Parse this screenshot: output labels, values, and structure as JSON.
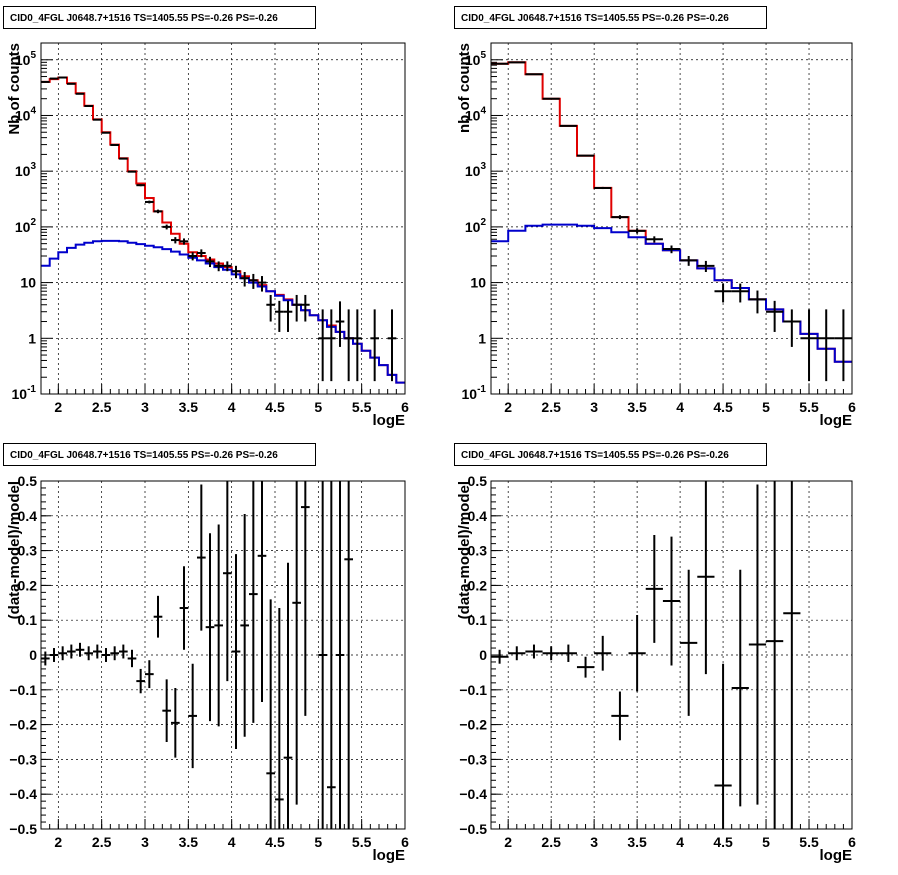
{
  "chart_data": [
    {
      "type": "line",
      "title": "CID0_4FGL J0648.7+1516 TS=1405.55 PS=-0.26 PS=-0.26",
      "xlabel": "logE",
      "ylabel": "Nb of counts",
      "xlim": [
        1.8,
        6.0
      ],
      "ylim": [
        0.1,
        200000
      ],
      "yscale": "log",
      "grid": true,
      "x_ticks": [
        "2",
        "2.5",
        "3",
        "3.5",
        "4",
        "4.5",
        "5",
        "5.5",
        "6"
      ],
      "y_ticks": [
        {
          "base": "10",
          "exp": "-1",
          "value": 0.1
        },
        {
          "base": "1",
          "exp": "",
          "value": 1
        },
        {
          "base": "10",
          "exp": "",
          "value": 10
        },
        {
          "base": "10",
          "exp": "2",
          "value": 100
        },
        {
          "base": "10",
          "exp": "3",
          "value": 1000
        },
        {
          "base": "10",
          "exp": "4",
          "value": 10000
        },
        {
          "base": "10",
          "exp": "5",
          "value": 100000
        }
      ],
      "series": [
        {
          "color": "#e00000",
          "style": "step",
          "bin_width": 0.1,
          "x": [
            1.8,
            1.9,
            2.0,
            2.1,
            2.2,
            2.3,
            2.4,
            2.5,
            2.6,
            2.7,
            2.8,
            2.9,
            3.0,
            3.1,
            3.2,
            3.3,
            3.4,
            3.5,
            3.6,
            3.7,
            3.8,
            3.9,
            4.0,
            4.1,
            4.2,
            4.3,
            4.4,
            4.5,
            4.6,
            4.7,
            4.8,
            4.9,
            5.0,
            5.1,
            5.2,
            5.3,
            5.4,
            5.5,
            5.6,
            5.7,
            5.8,
            5.9
          ],
          "y": [
            40000,
            45000,
            48000,
            38000,
            25000,
            15000,
            8500,
            5000,
            3000,
            1700,
            1000,
            600,
            330,
            190,
            120,
            75,
            50,
            35,
            30,
            26,
            22,
            19,
            16,
            13,
            11,
            9,
            7,
            6,
            5,
            4,
            3.2,
            2.6,
            2.1,
            1.7,
            1.3,
            1.0,
            0.8,
            0.6,
            0.45,
            0.33,
            0.22,
            0.16
          ]
        },
        {
          "color": "#0000cc",
          "style": "step",
          "bin_width": 0.1,
          "x": [
            1.8,
            1.9,
            2.0,
            2.1,
            2.2,
            2.3,
            2.4,
            2.5,
            2.6,
            2.7,
            2.8,
            2.9,
            3.0,
            3.1,
            3.2,
            3.3,
            3.4,
            3.5,
            3.6,
            3.7,
            3.8,
            3.9,
            4.0,
            4.1,
            4.2,
            4.3,
            4.4,
            4.5,
            4.6,
            4.7,
            4.8,
            4.9,
            5.0,
            5.1,
            5.2,
            5.3,
            5.4,
            5.5,
            5.6,
            5.7,
            5.8,
            5.9
          ],
          "y": [
            20,
            27,
            35,
            42,
            48,
            52,
            55,
            56,
            56,
            55,
            52,
            49,
            46,
            43,
            40,
            36,
            32,
            28,
            25,
            22,
            19,
            17,
            14,
            12,
            10,
            8.5,
            7,
            5.8,
            4.8,
            4,
            3.2,
            2.6,
            2.1,
            1.6,
            1.3,
            1.0,
            0.8,
            0.6,
            0.45,
            0.33,
            0.22,
            0.16
          ]
        }
      ],
      "points": {
        "x": [
          1.85,
          1.95,
          2.05,
          2.15,
          2.25,
          2.35,
          2.45,
          2.55,
          2.65,
          2.75,
          2.85,
          2.95,
          3.05,
          3.15,
          3.25,
          3.35,
          3.45,
          3.55,
          3.65,
          3.75,
          3.85,
          3.95,
          4.05,
          4.15,
          4.25,
          4.35,
          4.45,
          4.55,
          4.65,
          4.75,
          4.85,
          5.05,
          5.15,
          5.25,
          5.35,
          5.45,
          5.65,
          5.85
        ],
        "y": [
          40000,
          46000,
          48000,
          37000,
          24500,
          14800,
          8400,
          4900,
          2950,
          1680,
          980,
          560,
          280,
          190,
          100,
          58,
          55,
          30,
          34,
          24,
          20,
          20,
          16,
          12,
          11,
          10,
          4,
          3,
          3,
          4,
          4,
          1,
          1,
          2,
          1,
          1,
          1,
          1
        ],
        "yerr_lo": [
          200,
          220,
          220,
          190,
          160,
          120,
          90,
          70,
          55,
          40,
          31,
          23,
          16,
          14,
          10,
          7.5,
          7,
          5,
          5.5,
          5,
          4,
          4,
          4,
          3.5,
          3.3,
          3.1,
          2,
          1.7,
          1.7,
          2,
          2,
          0.83,
          0.83,
          1.3,
          0.83,
          0.83,
          0.83,
          0.83
        ],
        "yerr_hi": [
          200,
          220,
          220,
          190,
          160,
          120,
          90,
          70,
          55,
          40,
          31,
          23,
          16,
          14,
          10,
          7.5,
          7,
          5,
          5.5,
          5,
          4,
          4,
          4,
          3.5,
          3.3,
          3.1,
          2,
          1.7,
          1.7,
          2,
          2,
          2.3,
          2.3,
          2.6,
          2.3,
          2.3,
          2.3,
          2.3
        ],
        "xerr": 0.05
      }
    },
    {
      "type": "line",
      "title": "CID0_4FGL J0648.7+1516 TS=1405.55 PS=-0.26 PS=-0.26",
      "xlabel": "logE",
      "ylabel": "nb of counts",
      "xlim": [
        1.8,
        6.0
      ],
      "ylim": [
        0.1,
        200000
      ],
      "yscale": "log",
      "grid": true,
      "x_ticks": [
        "2",
        "2.5",
        "3",
        "3.5",
        "4",
        "4.5",
        "5",
        "5.5",
        "6"
      ],
      "y_ticks": [
        {
          "base": "10",
          "exp": "-1",
          "value": 0.1
        },
        {
          "base": "1",
          "exp": "",
          "value": 1
        },
        {
          "base": "10",
          "exp": "",
          "value": 10
        },
        {
          "base": "10",
          "exp": "2",
          "value": 100
        },
        {
          "base": "10",
          "exp": "3",
          "value": 1000
        },
        {
          "base": "10",
          "exp": "4",
          "value": 10000
        },
        {
          "base": "10",
          "exp": "5",
          "value": 100000
        }
      ],
      "series": [
        {
          "color": "#e00000",
          "style": "step",
          "bin_width": 0.2,
          "x": [
            1.8,
            2.0,
            2.2,
            2.4,
            2.6,
            2.8,
            3.0,
            3.2,
            3.4,
            3.6,
            3.8,
            4.0,
            4.2,
            4.4,
            4.6,
            4.8,
            5.0,
            5.2,
            5.4,
            5.6,
            5.8
          ],
          "y": [
            85000,
            90000,
            55000,
            20000,
            6500,
            1900,
            500,
            150,
            85,
            50,
            38,
            25,
            18,
            11,
            8,
            5,
            3.3,
            2,
            1.2,
            0.65,
            0.38
          ]
        },
        {
          "color": "#0000cc",
          "style": "step",
          "bin_width": 0.2,
          "x": [
            1.8,
            2.0,
            2.2,
            2.4,
            2.6,
            2.8,
            3.0,
            3.2,
            3.4,
            3.6,
            3.8,
            4.0,
            4.2,
            4.4,
            4.6,
            4.8,
            5.0,
            5.2,
            5.4,
            5.6,
            5.8
          ],
          "y": [
            55,
            85,
            105,
            110,
            110,
            105,
            95,
            80,
            65,
            50,
            38,
            25,
            18,
            11,
            8,
            5,
            3.3,
            2,
            1.2,
            0.65,
            0.38
          ]
        }
      ],
      "points": {
        "x": [
          1.9,
          2.1,
          2.3,
          2.5,
          2.7,
          2.9,
          3.1,
          3.3,
          3.5,
          3.7,
          3.9,
          4.1,
          4.3,
          4.5,
          4.7,
          4.9,
          5.1,
          5.3,
          5.5,
          5.7,
          5.9
        ],
        "y": [
          85000,
          90000,
          55000,
          20000,
          6500,
          1900,
          500,
          150,
          85,
          60,
          40,
          25,
          20,
          7,
          7,
          5,
          3,
          2,
          1,
          1,
          1
        ],
        "yerr_lo": [
          290,
          300,
          230,
          140,
          80,
          44,
          22,
          12,
          9,
          7.7,
          6.3,
          5,
          4.5,
          2.6,
          2.6,
          2.2,
          1.7,
          1.3,
          0.83,
          0.83,
          0.83
        ],
        "yerr_hi": [
          290,
          300,
          230,
          140,
          80,
          44,
          22,
          12,
          9,
          7.7,
          6.3,
          5,
          4.5,
          2.6,
          2.6,
          2.2,
          1.7,
          1.3,
          2.3,
          2.3,
          2.3
        ],
        "xerr": 0.1
      }
    },
    {
      "type": "scatter",
      "title": "CID0_4FGL J0648.7+1516 TS=1405.55 PS=-0.26 PS=-0.26",
      "xlabel": "logE",
      "ylabel": "(data-model)/model",
      "xlim": [
        1.8,
        6.0
      ],
      "ylim": [
        -0.5,
        0.5
      ],
      "yscale": "linear",
      "grid": true,
      "x_ticks": [
        "2",
        "2.5",
        "3",
        "3.5",
        "4",
        "4.5",
        "5",
        "5.5",
        "6"
      ],
      "y_ticks": [
        "−0.5",
        "−0.4",
        "−0.3",
        "−0.2",
        "−0.1",
        "0",
        "0.1",
        "0.2",
        "0.3",
        "0.4",
        "0.5"
      ],
      "points": {
        "x": [
          1.85,
          1.95,
          2.05,
          2.15,
          2.25,
          2.35,
          2.45,
          2.55,
          2.65,
          2.75,
          2.85,
          2.95,
          3.05,
          3.15,
          3.25,
          3.35,
          3.45,
          3.55,
          3.65,
          3.75,
          3.85,
          3.95,
          4.05,
          4.15,
          4.25,
          4.35,
          4.45,
          4.55,
          4.65,
          4.75,
          4.85,
          5.05,
          5.15,
          5.25,
          5.35
        ],
        "y": [
          -0.01,
          0.0,
          0.005,
          0.01,
          0.015,
          0.005,
          0.01,
          0.0,
          0.005,
          0.01,
          -0.01,
          -0.075,
          -0.055,
          0.11,
          -0.16,
          -0.195,
          0.135,
          -0.175,
          0.28,
          0.08,
          0.085,
          0.235,
          0.01,
          0.085,
          0.175,
          0.285,
          -0.34,
          -0.415,
          -0.295,
          0.15,
          0.425,
          0.0,
          -0.38,
          0.0,
          0.275
        ],
        "yerr": [
          0.02,
          0.02,
          0.02,
          0.02,
          0.02,
          0.02,
          0.02,
          0.02,
          0.02,
          0.02,
          0.025,
          0.035,
          0.04,
          0.06,
          0.09,
          0.1,
          0.12,
          0.15,
          0.21,
          0.27,
          0.29,
          0.31,
          0.28,
          0.32,
          0.37,
          0.42,
          0.5,
          0.55,
          0.56,
          0.58,
          0.6,
          1.0,
          1.0,
          1.0,
          1.0
        ],
        "xerr": 0.05
      }
    },
    {
      "type": "scatter",
      "title": "CID0_4FGL J0648.7+1516 TS=1405.55 PS=-0.26 PS=-0.26",
      "xlabel": "logE",
      "ylabel": "(data-model)/model",
      "xlim": [
        1.8,
        6.0
      ],
      "ylim": [
        -0.5,
        0.5
      ],
      "yscale": "linear",
      "grid": true,
      "x_ticks": [
        "2",
        "2.5",
        "3",
        "3.5",
        "4",
        "4.5",
        "5",
        "5.5",
        "6"
      ],
      "y_ticks": [
        "−0.5",
        "−0.4",
        "−0.3",
        "−0.2",
        "−0.1",
        "0",
        "0.1",
        "0.2",
        "0.3",
        "0.4",
        "0.5"
      ],
      "points": {
        "x": [
          1.9,
          2.1,
          2.3,
          2.5,
          2.7,
          2.9,
          3.1,
          3.3,
          3.5,
          3.7,
          3.9,
          4.1,
          4.3,
          4.5,
          4.7,
          4.9,
          5.1,
          5.3
        ],
        "y": [
          -0.005,
          0.005,
          0.01,
          0.005,
          0.005,
          -0.035,
          0.005,
          -0.175,
          0.005,
          0.19,
          0.155,
          0.035,
          0.225,
          -0.375,
          -0.095,
          0.03,
          0.04,
          0.12
        ],
        "yerr": [
          0.02,
          0.02,
          0.02,
          0.02,
          0.025,
          0.03,
          0.05,
          0.07,
          0.11,
          0.155,
          0.185,
          0.21,
          0.28,
          0.35,
          0.34,
          0.46,
          0.55,
          0.65
        ],
        "xerr": 0.1
      }
    }
  ]
}
